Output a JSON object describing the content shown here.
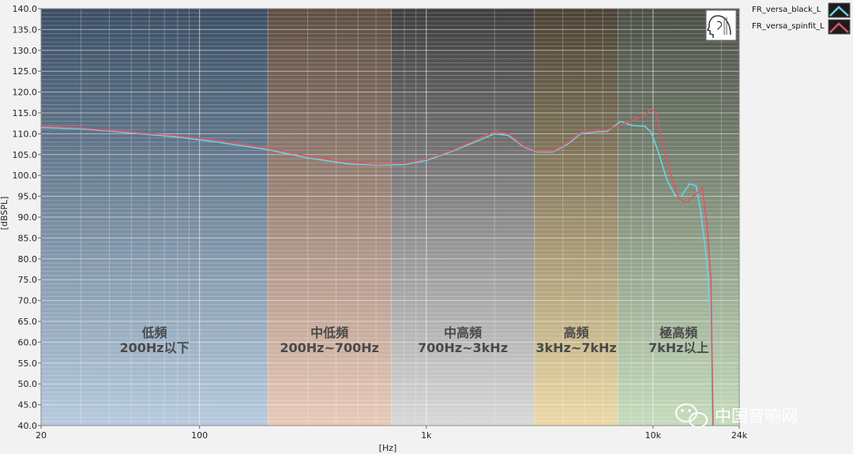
{
  "chart_data": {
    "type": "line",
    "xscale": "log",
    "xlim": [
      20,
      24000
    ],
    "ylim": [
      40,
      140
    ],
    "xlabel": "[Hz]",
    "ylabel": "[dBSPL]",
    "grid": true,
    "legend_position": "top-right",
    "xticks": [
      {
        "value": 20,
        "label": "20"
      },
      {
        "value": 100,
        "label": "100"
      },
      {
        "value": 1000,
        "label": "1k"
      },
      {
        "value": 10000,
        "label": "10k"
      },
      {
        "value": 24000,
        "label": "24k"
      }
    ],
    "yticks": [
      "40.0",
      "45.0",
      "50.0",
      "55.0",
      "60.0",
      "65.0",
      "70.0",
      "75.0",
      "80.0",
      "85.0",
      "90.0",
      "95.0",
      "100.0",
      "105.0",
      "110.0",
      "115.0",
      "120.0",
      "125.0",
      "130.0",
      "135.0",
      "140.0"
    ],
    "bands": [
      {
        "from": 20,
        "to": 200,
        "title": "低頻",
        "range": "200Hz以下",
        "color_top": "#3a4e63",
        "color_bottom": "#b6cade"
      },
      {
        "from": 200,
        "to": 700,
        "title": "中低頻",
        "range": "200Hz~700Hz",
        "color_top": "#5e4e44",
        "color_bottom": "#e8c9b9"
      },
      {
        "from": 700,
        "to": 3000,
        "title": "中高頻",
        "range": "700Hz~3kHz",
        "color_top": "#3e3e3e",
        "color_bottom": "#d8d8d8"
      },
      {
        "from": 3000,
        "to": 7000,
        "title": "高頻",
        "range": "3kHz~7kHz",
        "color_top": "#4a4234",
        "color_bottom": "#ecd9a6"
      },
      {
        "from": 7000,
        "to": 24000,
        "title": "極高頻",
        "range": "7kHz以上",
        "color_top": "#4a4e46",
        "color_bottom": "#c5dcbc"
      }
    ],
    "series": [
      {
        "name": "FR_versa_black_L",
        "color": "#6fd1e6",
        "points": [
          [
            20,
            111.5
          ],
          [
            30,
            111.2
          ],
          [
            50,
            110.2
          ],
          [
            80,
            109.2
          ],
          [
            120,
            108.0
          ],
          [
            200,
            106.2
          ],
          [
            300,
            104.2
          ],
          [
            450,
            102.8
          ],
          [
            600,
            102.5
          ],
          [
            800,
            102.6
          ],
          [
            1000,
            103.6
          ],
          [
            1300,
            105.8
          ],
          [
            1600,
            107.8
          ],
          [
            2000,
            110.0
          ],
          [
            2300,
            109.6
          ],
          [
            2700,
            106.8
          ],
          [
            3100,
            105.6
          ],
          [
            3600,
            105.6
          ],
          [
            4200,
            107.5
          ],
          [
            4800,
            110.0
          ],
          [
            5500,
            110.4
          ],
          [
            6300,
            110.6
          ],
          [
            7200,
            113.0
          ],
          [
            8000,
            112.0
          ],
          [
            9200,
            111.8
          ],
          [
            9800,
            110.4
          ],
          [
            10500,
            106.0
          ],
          [
            11500,
            99.0
          ],
          [
            12500,
            95.2
          ],
          [
            13300,
            95.0
          ],
          [
            14500,
            98.0
          ],
          [
            15500,
            97.5
          ],
          [
            16200,
            91.5
          ],
          [
            17200,
            80.0
          ],
          [
            18000,
            65.0
          ],
          [
            18300,
            40.0
          ]
        ]
      },
      {
        "name": "FR_versa_spinfit_L",
        "color": "#e05563",
        "points": [
          [
            20,
            111.8
          ],
          [
            30,
            111.4
          ],
          [
            50,
            110.4
          ],
          [
            80,
            109.5
          ],
          [
            120,
            108.4
          ],
          [
            200,
            106.6
          ],
          [
            300,
            104.7
          ],
          [
            450,
            103.2
          ],
          [
            600,
            102.7
          ],
          [
            800,
            102.9
          ],
          [
            1000,
            103.9
          ],
          [
            1300,
            106.0
          ],
          [
            1600,
            108.2
          ],
          [
            2000,
            110.6
          ],
          [
            2300,
            110.0
          ],
          [
            2700,
            107.0
          ],
          [
            3100,
            105.8
          ],
          [
            3600,
            105.8
          ],
          [
            4200,
            107.8
          ],
          [
            4800,
            110.3
          ],
          [
            5500,
            110.6
          ],
          [
            6300,
            111.0
          ],
          [
            7200,
            112.2
          ],
          [
            8000,
            113.0
          ],
          [
            9200,
            114.5
          ],
          [
            9800,
            116.0
          ],
          [
            10300,
            115.0
          ],
          [
            11000,
            108.0
          ],
          [
            12000,
            100.0
          ],
          [
            13000,
            94.5
          ],
          [
            14000,
            93.5
          ],
          [
            15000,
            94.8
          ],
          [
            16500,
            97.0
          ],
          [
            17300,
            88.0
          ],
          [
            18000,
            75.0
          ],
          [
            18400,
            40.0
          ]
        ]
      }
    ]
  },
  "watermark": "中国音响网"
}
